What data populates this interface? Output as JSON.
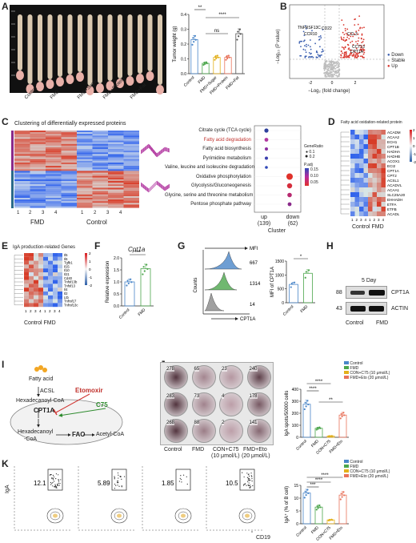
{
  "panels": {
    "A": {
      "label": "A",
      "image_groups": [
        "Control",
        "FMD",
        "FMD+Sugar",
        "FMD+Protein",
        "FMD+Fat"
      ],
      "chart_data": {
        "type": "bar",
        "ylabel": "Tumor weight (g)",
        "ylim": [
          0,
          0.4
        ],
        "yticks": [
          "0.0",
          "0.1",
          "0.2",
          "0.3",
          "0.4"
        ],
        "categories": [
          "Control",
          "FMD",
          "FMD+Sugar",
          "FMD+Protein",
          "FMD+Fat"
        ],
        "values": [
          0.23,
          0.07,
          0.11,
          0.11,
          0.27
        ],
        "annotations": [
          "**",
          "ns",
          "****"
        ]
      }
    },
    "B": {
      "label": "B",
      "xlabel": "−Log₂ (fold change)",
      "ylabel": "−Log₁₀ (P value)",
      "xticks": [
        "-2",
        "0",
        "2"
      ],
      "gene_labels": [
        "TNFRSF13C",
        "CD22",
        "CCR10",
        "CCL3",
        "CCT13",
        "CPT1A"
      ],
      "legend": [
        "Down",
        "Stable",
        "Up"
      ],
      "colors": {
        "down": "#3b5fb0",
        "stable": "#bdbdbd",
        "up": "#d9352c"
      }
    },
    "C": {
      "label": "C",
      "heatmap_title": "Clustering of differentially expressed proteins",
      "columns": [
        "1",
        "2",
        "3",
        "4",
        "1",
        "2",
        "3",
        "4"
      ],
      "groups": [
        "FMD",
        "Control"
      ],
      "chart_data": {
        "type": "scatter",
        "pathways": [
          "Citrate cycle (TCA cycle)",
          "Fatty acid degradation",
          "Fatty acid biosynthesis",
          "Pyrimidine metabolism",
          "Valine, leucine and isoleucine degradation",
          "Oxidative phosphorylation",
          "Glycolysis/Gluconeogenesis",
          "Glycine, serine and threonine metabolism",
          "Pentose phosphate pathway"
        ],
        "highlight": "Fatty acid degradation",
        "clusters": [
          "up\n(139)",
          "down\n(62)"
        ],
        "xlabel": "Cluster",
        "cluster_up": "up",
        "cluster_up_n": "(139)",
        "cluster_down": "down",
        "cluster_down_n": "(62)",
        "legend_size_title": "GeneRatio",
        "legend_sizes": [
          "0.1",
          "0.2"
        ],
        "legend_color_title": "P.adj",
        "legend_colors": [
          "0.15",
          "0.10",
          "0.05"
        ]
      }
    },
    "D": {
      "label": "D",
      "title": "Fatty acid oxidation-related protein",
      "genes": [
        "ACADM",
        "ACAA2",
        "ECH1",
        "CPT1B",
        "HADHA",
        "HADHB",
        "ACOX1",
        "ECI2",
        "CPT1A",
        "CPT2",
        "ACSL1",
        "ACADVL",
        "ACAA1",
        "SLC25A20",
        "EHHADH",
        "ETFA",
        "ETFB",
        "ACADL"
      ],
      "columns": [
        "1",
        "2",
        "3",
        "4",
        "1",
        "2",
        "3",
        "4"
      ],
      "groups": [
        "Control",
        "FMD"
      ],
      "scale": [
        "2",
        "1",
        "0",
        "-1",
        "-2"
      ]
    },
    "E": {
      "label": "E",
      "title": "IgA production-related Genes",
      "genes": [
        "Il5",
        "Il6",
        "Tgfb1",
        "Il15",
        "Il10",
        "Il21",
        "Cd40",
        "Tnfsf13b",
        "Tnfsf13",
        "Il4",
        "Il2",
        "Ltb",
        "Tnfrsf17",
        "Tnfrsf13c"
      ],
      "columns": [
        "1",
        "2",
        "3",
        "4",
        "1",
        "2",
        "3",
        "4"
      ],
      "groups": [
        "Control",
        "FMD"
      ],
      "scale": [
        "2",
        "1",
        "0",
        "-1",
        "-2"
      ]
    },
    "F": {
      "label": "F",
      "gene": "Cpt1a",
      "chart_data": {
        "type": "bar",
        "ylabel": "Relative expression",
        "ylim": [
          0,
          2.0
        ],
        "yticks": [
          "0.0",
          "0.5",
          "1.0",
          "1.5",
          "2.0"
        ],
        "categories": [
          "Control",
          "FMD"
        ],
        "values": [
          1.0,
          1.55
        ],
        "annotation": "***"
      }
    },
    "G": {
      "label": "G",
      "flow": {
        "xlabel": "CPT1A",
        "ylabel": "Counts",
        "arrow_label": "MFI",
        "values": [
          "667",
          "1314",
          "14"
        ]
      },
      "chart_data": {
        "type": "bar",
        "ylabel": "MFI of CPT1A",
        "ylim": [
          0,
          1500
        ],
        "yticks": [
          "0",
          "500",
          "1000",
          "1500"
        ],
        "categories": [
          "Control",
          "FMD"
        ],
        "values": [
          660,
          1060
        ],
        "annotation": "*"
      }
    },
    "H": {
      "label": "H",
      "title": "5 Day",
      "bands": [
        {
          "mw": "88",
          "name": "CPT1A"
        },
        {
          "mw": "43",
          "name": "ACTIN"
        }
      ],
      "groups": [
        "Control",
        "FMD"
      ]
    },
    "I": {
      "label": "I",
      "nodes": [
        "Fatty acid",
        "ACSL",
        "Hexadecanoyl-CoA",
        "CPT1A",
        "Hexadecanoyl",
        "-CoA",
        "FAO",
        "Acetyl-CoA"
      ],
      "inhibitor": "Etomoxir",
      "activator": "C75"
    },
    "J": {
      "label": "J",
      "wells": [
        [
          "278",
          "65",
          "23",
          "240"
        ],
        [
          "283",
          "73",
          "4",
          "178"
        ],
        [
          "268",
          "88",
          "2",
          "141"
        ]
      ],
      "well_labels": [
        "Control",
        "FMD",
        "CON+C75",
        "FMD+Eto"
      ],
      "well_sublabels": [
        "(10 μmol/L)",
        "(20 μmol/L)"
      ],
      "legend": [
        "Control",
        "FMD",
        "CON+C75 (10 μmol/L)",
        "FMD+Eto (20 μmol/L)"
      ],
      "colors": [
        "#4a86c8",
        "#4ca64c",
        "#e3b01b",
        "#e8735b"
      ],
      "chart_data": {
        "type": "bar",
        "ylabel": "IgA spots/50000 cells",
        "ylim": [
          0,
          400
        ],
        "yticks": [
          "0",
          "100",
          "200",
          "300",
          "400"
        ],
        "categories": [
          "Control",
          "FMD",
          "CON+C75",
          "FMD+Eto"
        ],
        "values": [
          275,
          75,
          10,
          185
        ],
        "annotations": [
          "****",
          "****",
          "**"
        ]
      }
    },
    "K": {
      "label": "K",
      "flow": {
        "xlabel": "CD19",
        "ylabel": "IgA",
        "values": [
          "12.1",
          "5.89",
          "1.85",
          "10.5"
        ]
      },
      "legend": [
        "Control",
        "FMD",
        "CON+C75 (10 μmol/L)",
        "FMD+Eto (20 μmol/L)"
      ],
      "chart_data": {
        "type": "bar",
        "ylabel": "IgA⁺ (% of B cell)",
        "ylim": [
          0,
          15
        ],
        "yticks": [
          "0",
          "5",
          "10",
          "15"
        ],
        "categories": [
          "Control",
          "FMD",
          "CON+C75",
          "FMD+Eto"
        ],
        "values": [
          12.0,
          6.5,
          1.5,
          11.2
        ],
        "annotations": [
          "****",
          "****",
          "***"
        ]
      }
    }
  }
}
